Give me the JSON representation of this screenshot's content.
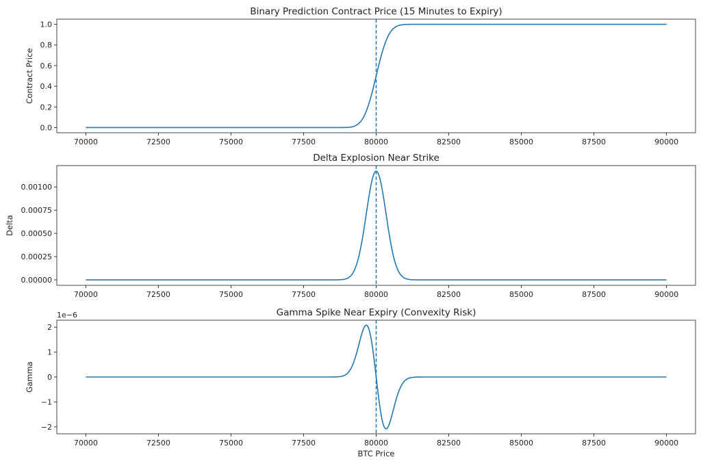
{
  "chart_data": [
    {
      "type": "line",
      "title": "Binary Prediction Contract Price (15 Minutes to Expiry)",
      "xlabel": "",
      "ylabel": "Contract Price",
      "xlim": [
        69000,
        91000
      ],
      "ylim": [
        -0.05,
        1.05
      ],
      "xticks": [
        "70000",
        "72500",
        "75000",
        "77500",
        "80000",
        "82500",
        "85000",
        "87500",
        "90000"
      ],
      "yticks": [
        "0.0",
        "0.2",
        "0.4",
        "0.6",
        "0.8",
        "1.0"
      ],
      "ytick_values": [
        0,
        0.2,
        0.4,
        0.6,
        0.8,
        1.0
      ],
      "series": [
        {
          "name": "price",
          "function": "normal_cdf",
          "x_range": [
            70000,
            90000
          ],
          "strike": 80000,
          "sigma": 341
        }
      ],
      "vline": {
        "x": 80000,
        "style": "dashed"
      },
      "color": "#1f77b4"
    },
    {
      "type": "line",
      "title": "Delta Explosion Near Strike",
      "xlabel": "",
      "ylabel": "Delta",
      "xlim": [
        69000,
        91000
      ],
      "ylim": [
        -5.85e-05,
        0.00123
      ],
      "xticks": [
        "70000",
        "72500",
        "75000",
        "77500",
        "80000",
        "82500",
        "85000",
        "87500",
        "90000"
      ],
      "yticks": [
        "0.00000",
        "0.00025",
        "0.00050",
        "0.00075",
        "0.00100"
      ],
      "ytick_values": [
        0,
        0.00025,
        0.0005,
        0.00075,
        0.001
      ],
      "series": [
        {
          "name": "delta",
          "function": "normal_pdf",
          "x_range": [
            70000,
            90000
          ],
          "strike": 80000,
          "sigma": 341,
          "peak": 0.00117
        }
      ],
      "vline": {
        "x": 80000,
        "style": "dashed"
      },
      "color": "#1f77b4"
    },
    {
      "type": "line",
      "title": "Gamma Spike Near Expiry (Convexity Risk)",
      "xlabel": "BTC Price",
      "ylabel": "Gamma",
      "offset_text": "1e−6",
      "xlim": [
        69000,
        91000
      ],
      "ylim": [
        -2.28e-06,
        2.28e-06
      ],
      "xticks": [
        "70000",
        "72500",
        "75000",
        "77500",
        "80000",
        "82500",
        "85000",
        "87500",
        "90000"
      ],
      "yticks": [
        "−2",
        "−1",
        "0",
        "1",
        "2"
      ],
      "ytick_values": [
        -2e-06,
        -1e-06,
        0,
        1e-06,
        2e-06
      ],
      "series": [
        {
          "name": "gamma",
          "function": "normal_pdf_derivative",
          "x_range": [
            70000,
            90000
          ],
          "strike": 80000,
          "sigma": 341,
          "peak": 2.08e-06
        }
      ],
      "vline": {
        "x": 80000,
        "style": "dashed"
      },
      "color": "#1f77b4"
    }
  ]
}
